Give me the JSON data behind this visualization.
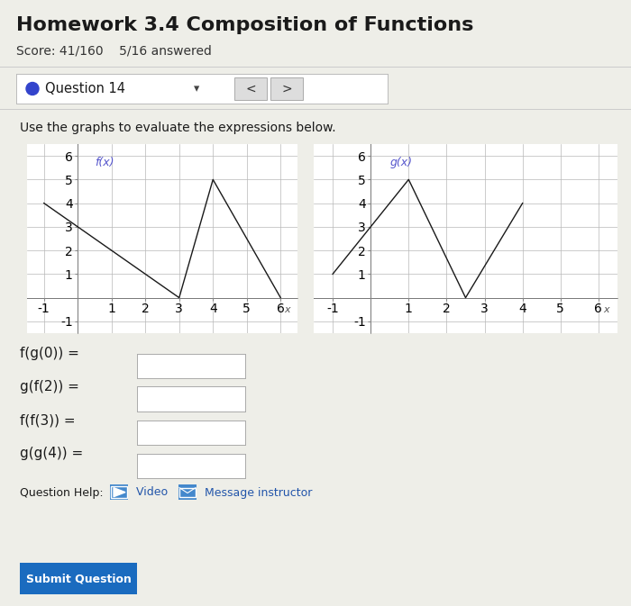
{
  "title": "Homework 3.4 Composition of Functions",
  "score_text": "Score: 41/160    5/16 answered",
  "question_label": "Question 14",
  "instruction": "Use the graphs to evaluate the expressions below.",
  "bg_color": "#eeeee8",
  "white_color": "#ffffff",
  "graph_bg": "#ffffff",
  "grid_color": "#b8b8b8",
  "line_color": "#1a1a1a",
  "label_color": "#5555cc",
  "f_label": "f(x)",
  "g_label": "g(x)",
  "fx_points": [
    [
      -1,
      4
    ],
    [
      3,
      0
    ],
    [
      4,
      5
    ],
    [
      6,
      0
    ]
  ],
  "gx_points": [
    [
      -1,
      1
    ],
    [
      1,
      5
    ],
    [
      2.5,
      0
    ],
    [
      4,
      4
    ]
  ],
  "expressions": [
    "f(g(0)) =",
    "g(f(2)) =",
    "f(f(3)) =",
    "g(g(4)) ="
  ],
  "xlim": [
    -1.5,
    6.5
  ],
  "ylim": [
    -1.5,
    6.5
  ],
  "x_ticks": [
    -1,
    1,
    2,
    3,
    4,
    5,
    6
  ],
  "y_ticks": [
    -1,
    1,
    2,
    3,
    4,
    5,
    6
  ],
  "title_fontsize": 16,
  "score_fontsize": 10,
  "instr_fontsize": 10
}
